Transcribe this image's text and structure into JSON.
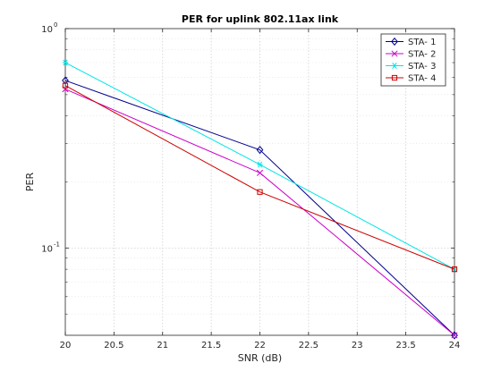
{
  "chart_data": {
    "type": "line",
    "title": "PER for uplink 802.11ax link",
    "xlabel": "SNR (dB)",
    "ylabel": "PER",
    "x": [
      20,
      22,
      24
    ],
    "xlim": [
      20,
      24
    ],
    "ylim": [
      0.04,
      1
    ],
    "yscale": "log",
    "xticks": [
      "20",
      "20.5",
      "21",
      "21.5",
      "22",
      "22.5",
      "23",
      "23.5",
      "24"
    ],
    "yticks": [
      {
        "value": 1,
        "base": "10",
        "exp": "0"
      },
      {
        "value": 0.1,
        "base": "10",
        "exp": "-1"
      }
    ],
    "grid": true,
    "legend_position": "top-right",
    "series": [
      {
        "name": "STA- 1",
        "values": [
          0.58,
          0.28,
          0.04
        ],
        "color": "#00008b",
        "marker": "diamond"
      },
      {
        "name": "STA- 2",
        "values": [
          0.53,
          0.22,
          0.04
        ],
        "color": "#cc00cc",
        "marker": "x"
      },
      {
        "name": "STA- 3",
        "values": [
          0.7,
          0.24,
          0.08
        ],
        "color": "#00e5e5",
        "marker": "star"
      },
      {
        "name": "STA- 4",
        "values": [
          0.55,
          0.18,
          0.08
        ],
        "color": "#cc0000",
        "marker": "square"
      }
    ]
  }
}
